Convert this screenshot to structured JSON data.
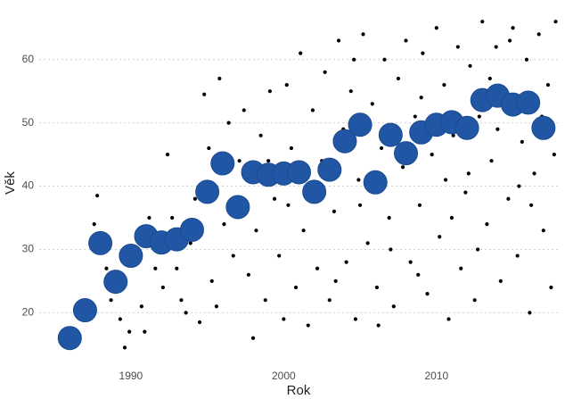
{
  "chart_data": {
    "type": "scatter",
    "x_label": "Rok",
    "y_label": "Věk",
    "xlim": [
      1984,
      2018
    ],
    "ylim": [
      13,
      68
    ],
    "xticks": [
      1990,
      2000,
      2010
    ],
    "yticks": [
      20,
      30,
      40,
      50,
      60
    ],
    "grid": true,
    "series": [
      {
        "color": "#000000",
        "size": "small",
        "x": [
          1987.6,
          1987.8,
          1988.4,
          1988.7,
          1989.3,
          1989.6,
          1989.9,
          1990.4,
          1990.7,
          1990.9,
          1991.2,
          1991.6,
          1992.1,
          1992.4,
          1992.7,
          1993.0,
          1993.3,
          1993.6,
          1993.9,
          1994.2,
          1994.5,
          1994.8,
          1995.1,
          1995.3,
          1995.6,
          1995.8,
          1996.1,
          1996.4,
          1996.7,
          1997.1,
          1997.4,
          1997.7,
          1998.0,
          1998.2,
          1998.5,
          1998.8,
          1999.1,
          1999.4,
          1999.7,
          2000.0,
          2000.2,
          2000.5,
          2000.8,
          2001.1,
          2001.3,
          2001.6,
          2001.9,
          2002.2,
          2002.5,
          2002.7,
          2003.0,
          2003.3,
          2003.6,
          2003.9,
          2004.1,
          2004.4,
          2004.7,
          2004.9,
          2005.2,
          2005.5,
          2005.8,
          2006.1,
          2006.4,
          2006.6,
          2006.9,
          2007.2,
          2007.5,
          2007.8,
          2008.0,
          2008.3,
          2008.6,
          2008.9,
          2009.1,
          2009.4,
          2009.7,
          2010.0,
          2010.2,
          2010.5,
          2010.8,
          2011.1,
          2011.4,
          2011.6,
          2011.9,
          2012.2,
          2012.5,
          2012.8,
          2013.0,
          2013.3,
          2013.6,
          2013.9,
          2014.2,
          2014.5,
          2014.7,
          2015.0,
          2015.3,
          2015.6,
          2015.9,
          2016.1,
          2016.4,
          2016.7,
          2017.0,
          2017.3,
          2017.5,
          2017.7,
          2017.8,
          2003.4,
          2005.0,
          2007.0,
          2009.0,
          2011.0,
          2013.5,
          2015.4,
          2016.9,
          2002.0,
          2006.2,
          2008.8,
          2012.1,
          2014.0,
          2016.2,
          2000.3,
          1999.0,
          2004.6,
          2010.6,
          2012.7,
          2014.8
        ],
        "values": [
          34,
          38.5,
          27,
          22,
          19,
          14.5,
          17,
          32,
          21,
          17,
          35,
          27,
          24,
          45,
          35,
          27,
          22,
          20,
          31,
          38,
          18.5,
          54.5,
          46,
          25,
          21,
          57,
          34,
          50,
          29,
          44,
          52,
          26,
          16,
          33,
          48,
          22,
          55,
          38,
          29,
          19,
          56,
          46,
          24,
          61,
          33,
          18,
          52,
          27,
          44,
          58,
          22,
          36,
          63,
          49,
          28,
          55,
          19,
          41,
          64,
          31,
          53,
          24,
          46,
          60,
          35,
          21,
          57,
          43,
          63,
          28,
          51,
          37,
          61,
          23,
          45,
          65,
          32,
          56,
          19,
          48,
          62,
          27,
          39,
          59,
          22,
          51,
          66,
          34,
          44,
          62,
          25,
          55,
          38,
          65,
          29,
          47,
          60,
          20,
          42,
          64,
          33,
          56,
          24,
          45,
          66,
          25,
          37,
          30,
          54,
          35,
          57,
          40,
          51,
          40,
          18,
          26,
          42,
          49,
          37,
          37,
          44,
          60,
          41,
          30,
          63
        ]
      },
      {
        "color": "#2156a5",
        "size": "large",
        "x": [
          1986,
          1987,
          1988,
          1989,
          1990,
          1991,
          1992,
          1993,
          1994,
          1995,
          1996,
          1997,
          1998,
          1999,
          2000,
          2001,
          2002,
          2003,
          2004,
          2005,
          2006,
          2007,
          2008,
          2009,
          2010,
          2011,
          2012,
          2013,
          2014,
          2015,
          2016,
          2017
        ],
        "values": [
          16.0,
          20.4,
          31.0,
          24.9,
          29.0,
          32.1,
          31.1,
          31.6,
          33.1,
          39.1,
          43.6,
          36.7,
          42.2,
          41.8,
          42.0,
          42.2,
          39.1,
          42.6,
          47.1,
          49.7,
          40.6,
          48.1,
          45.2,
          48.5,
          49.7,
          50.1,
          49.2,
          53.6,
          54.3,
          52.9,
          53.2,
          49.2
        ]
      }
    ]
  }
}
